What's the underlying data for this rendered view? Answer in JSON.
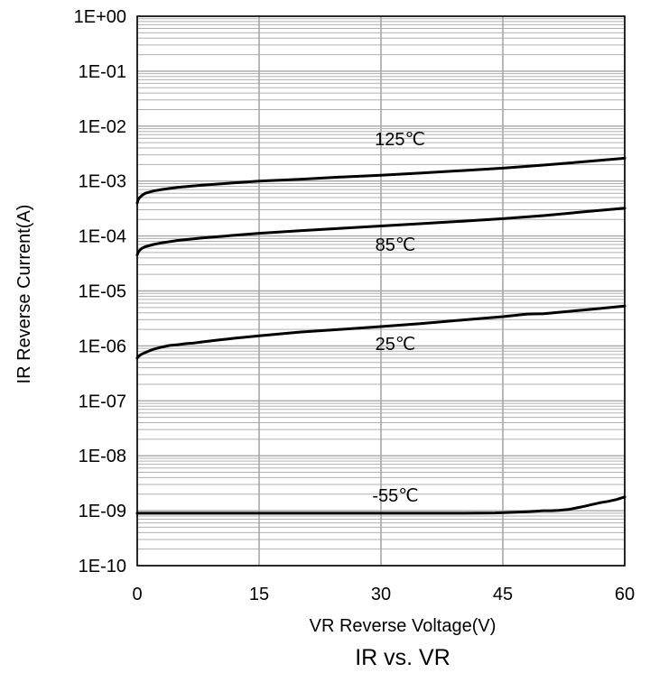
{
  "chart_data": {
    "type": "line",
    "title": "IR vs. VR",
    "xlabel": "VR Reverse Voltage(V)",
    "ylabel": "IR Reverse Current(A)",
    "xlim": [
      0,
      60
    ],
    "ylim": [
      1e-10,
      1
    ],
    "y_scale": "log",
    "grid": true,
    "x_ticks": [
      "0",
      "15",
      "30",
      "45",
      "60"
    ],
    "y_ticks": [
      "1E+00",
      "1E-01",
      "1E-02",
      "1E-03",
      "1E-04",
      "1E-05",
      "1E-06",
      "1E-07",
      "1E-08",
      "1E-09",
      "1E-10"
    ],
    "series": [
      {
        "name": "125℃",
        "x": [
          0,
          0.1,
          0.3,
          0.6,
          1,
          2,
          3,
          5,
          8,
          12,
          15,
          20,
          25,
          30,
          35,
          40,
          45,
          50,
          55,
          60
        ],
        "y": [
          0.0004,
          0.00045,
          0.0005,
          0.00055,
          0.0006,
          0.00066,
          0.0007,
          0.00077,
          0.00084,
          0.00093,
          0.001,
          0.00108,
          0.00118,
          0.00128,
          0.0014,
          0.00155,
          0.00172,
          0.00195,
          0.00225,
          0.0026
        ]
      },
      {
        "name": "85℃",
        "x": [
          0,
          0.1,
          0.3,
          0.6,
          1,
          2,
          3,
          5,
          8,
          12,
          15,
          20,
          25,
          30,
          35,
          40,
          45,
          50,
          55,
          60
        ],
        "y": [
          4.5e-05,
          5e-05,
          5.5e-05,
          6e-05,
          6.4e-05,
          7e-05,
          7.5e-05,
          8.3e-05,
          9.2e-05,
          0.000103,
          0.000112,
          0.000125,
          0.000138,
          0.000152,
          0.000168,
          0.000186,
          0.000207,
          0.000235,
          0.000275,
          0.00032
        ]
      },
      {
        "name": "25℃",
        "x": [
          0,
          0.2,
          0.5,
          1,
          2,
          3,
          4,
          5,
          6,
          7,
          8,
          10,
          12,
          15,
          20,
          25,
          30,
          35,
          40,
          45,
          48,
          50,
          55,
          60
        ],
        "y": [
          6e-07,
          6.5e-07,
          7e-07,
          7.6e-07,
          8.7e-07,
          9.5e-07,
          1.02e-06,
          1.05e-06,
          1.1e-06,
          1.13e-06,
          1.18e-06,
          1.28e-06,
          1.38e-06,
          1.52e-06,
          1.78e-06,
          2e-06,
          2.25e-06,
          2.55e-06,
          2.95e-06,
          3.4e-06,
          3.8e-06,
          3.85e-06,
          4.5e-06,
          5.3e-06
        ]
      },
      {
        "name": "-55℃",
        "x": [
          0,
          10,
          20,
          30,
          40,
          44,
          46,
          48,
          50,
          51,
          52,
          53,
          54,
          55,
          56,
          57,
          58,
          59,
          60
        ],
        "y": [
          9e-10,
          9e-10,
          9e-10,
          9e-10,
          9e-10,
          9.1e-10,
          9.3e-10,
          9.6e-10,
          1e-09,
          1e-09,
          1.02e-09,
          1.05e-09,
          1.12e-09,
          1.2e-09,
          1.3e-09,
          1.4e-09,
          1.48e-09,
          1.6e-09,
          1.78e-09
        ]
      }
    ]
  }
}
